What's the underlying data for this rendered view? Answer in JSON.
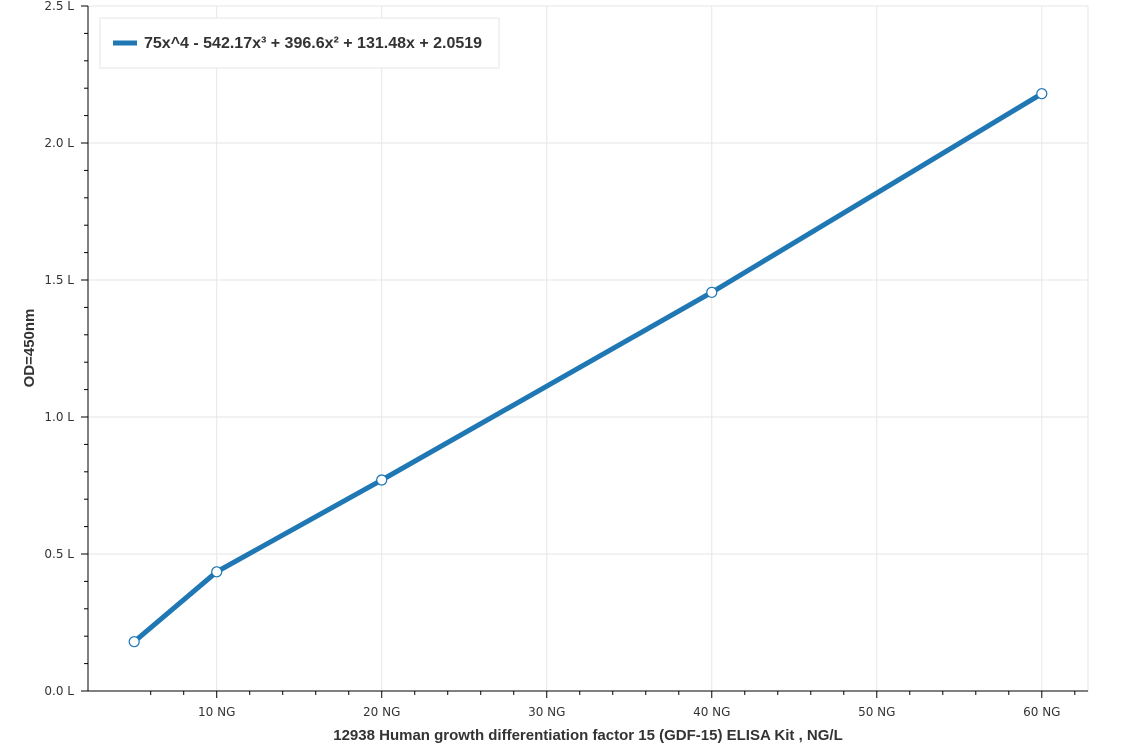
{
  "chart_data": {
    "type": "line",
    "x_unit_suffix": " NG",
    "y_unit_suffix": " L",
    "xlabel": "12938 Human growth differentiation factor 15 (GDF-15) ELISA Kit  , NG/L",
    "ylabel": "OD=450nm",
    "xlim": [
      2.2,
      62.8
    ],
    "ylim": [
      0,
      2.5
    ],
    "x_ticks": [
      10,
      20,
      30,
      40,
      50,
      60
    ],
    "y_ticks": [
      0.0,
      0.5,
      1.0,
      1.5,
      2.0,
      2.5
    ],
    "grid": true,
    "legend_position": "top-left",
    "series": [
      {
        "name": "75x^4 - 542.17x³ + 396.6x² + 131.48x + 2.0519",
        "color": "#1f77b4",
        "x": [
          5,
          10,
          20,
          40,
          60
        ],
        "y": [
          0.18,
          0.435,
          0.77,
          1.455,
          2.18
        ]
      }
    ]
  }
}
